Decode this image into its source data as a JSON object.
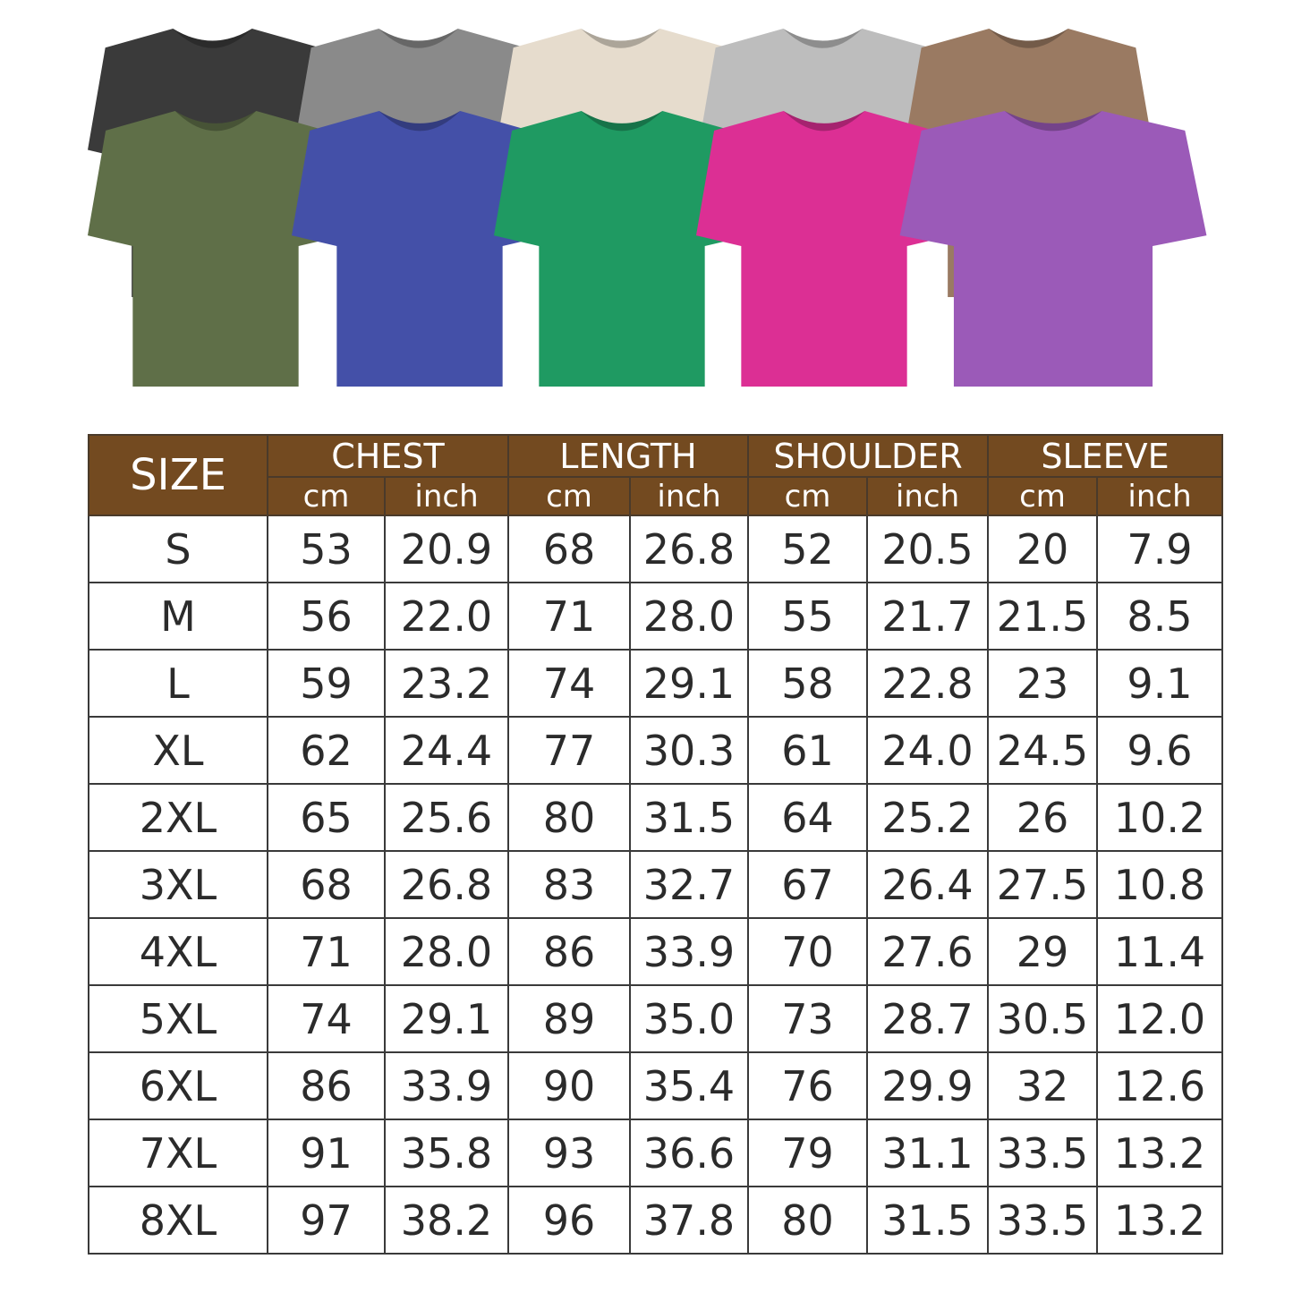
{
  "shirts": {
    "back_row": [
      {
        "color_name": "black",
        "hex": "#3a3a3a"
      },
      {
        "color_name": "gray",
        "hex": "#8a8a8a"
      },
      {
        "color_name": "cream",
        "hex": "#e6dccd"
      },
      {
        "color_name": "light-gray",
        "hex": "#bdbdbd"
      },
      {
        "color_name": "brown",
        "hex": "#9a7a62"
      }
    ],
    "front_row": [
      {
        "color_name": "olive",
        "hex": "#5f6f48"
      },
      {
        "color_name": "blue",
        "hex": "#4450a8"
      },
      {
        "color_name": "green",
        "hex": "#1f9a62"
      },
      {
        "color_name": "pink",
        "hex": "#dc2f94"
      },
      {
        "color_name": "purple",
        "hex": "#9b5ab8"
      }
    ]
  },
  "table": {
    "header_color": "#734a20",
    "size_label": "SIZE",
    "groups": [
      "CHEST",
      "LENGTH",
      "SHOULDER",
      "SLEEVE"
    ],
    "units": [
      "cm",
      "inch"
    ],
    "rows": [
      [
        "S",
        "53",
        "20.9",
        "68",
        "26.8",
        "52",
        "20.5",
        "20",
        "7.9"
      ],
      [
        "M",
        "56",
        "22.0",
        "71",
        "28.0",
        "55",
        "21.7",
        "21.5",
        "8.5"
      ],
      [
        "L",
        "59",
        "23.2",
        "74",
        "29.1",
        "58",
        "22.8",
        "23",
        "9.1"
      ],
      [
        "XL",
        "62",
        "24.4",
        "77",
        "30.3",
        "61",
        "24.0",
        "24.5",
        "9.6"
      ],
      [
        "2XL",
        "65",
        "25.6",
        "80",
        "31.5",
        "64",
        "25.2",
        "26",
        "10.2"
      ],
      [
        "3XL",
        "68",
        "26.8",
        "83",
        "32.7",
        "67",
        "26.4",
        "27.5",
        "10.8"
      ],
      [
        "4XL",
        "71",
        "28.0",
        "86",
        "33.9",
        "70",
        "27.6",
        "29",
        "11.4"
      ],
      [
        "5XL",
        "74",
        "29.1",
        "89",
        "35.0",
        "73",
        "28.7",
        "30.5",
        "12.0"
      ],
      [
        "6XL",
        "86",
        "33.9",
        "90",
        "35.4",
        "76",
        "29.9",
        "32",
        "12.6"
      ],
      [
        "7XL",
        "91",
        "35.8",
        "93",
        "36.6",
        "79",
        "31.1",
        "33.5",
        "13.2"
      ],
      [
        "8XL",
        "97",
        "38.2",
        "96",
        "37.8",
        "80",
        "31.5",
        "33.5",
        "13.2"
      ]
    ]
  }
}
